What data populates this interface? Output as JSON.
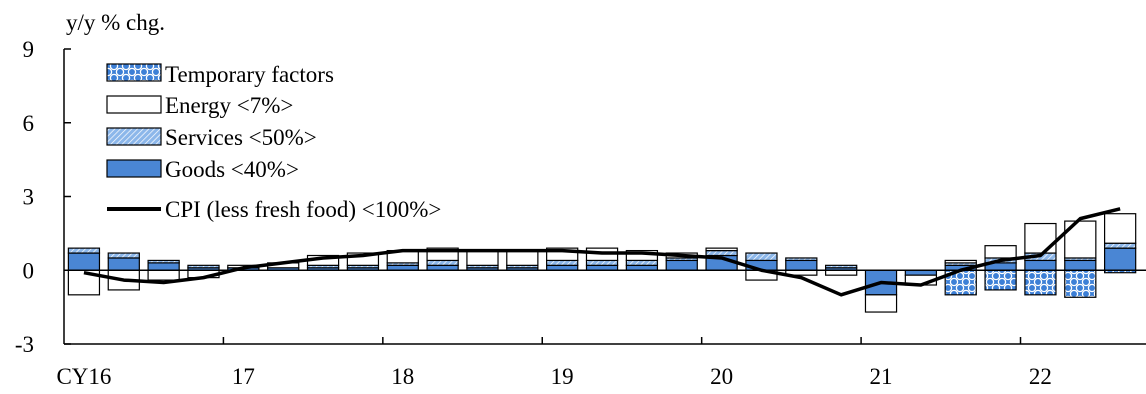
{
  "chart_data": {
    "type": "bar",
    "ylabel": "y/y % chg.",
    "ylim": [
      -3,
      9
    ],
    "yticks": [
      9,
      6,
      3,
      0,
      -3
    ],
    "ytick_labels": [
      "9",
      "6",
      "3",
      "0",
      "-3"
    ],
    "xtick_labels": [
      "CY16",
      "17",
      "18",
      "19",
      "20",
      "21",
      "22"
    ],
    "grid": false,
    "legend_position": "top-left",
    "colors": {
      "goods": "#4a86d4",
      "services": "#8cb7ea",
      "temporary": "#3c7fd6",
      "energy": "#ffffff",
      "line": "#000000"
    },
    "categories": [
      "16Q1",
      "16Q2",
      "16Q3",
      "16Q4",
      "17Q1",
      "17Q2",
      "17Q3",
      "17Q4",
      "18Q1",
      "18Q2",
      "18Q3",
      "18Q4",
      "19Q1",
      "19Q2",
      "19Q3",
      "19Q4",
      "20Q1",
      "20Q2",
      "20Q3",
      "20Q4",
      "21Q1",
      "21Q2",
      "21Q3",
      "21Q4",
      "22Q1",
      "22Q2",
      "22Q3"
    ],
    "series": [
      {
        "name": "Temporary factors",
        "kind": "bar",
        "values": [
          0,
          0,
          0,
          0,
          0,
          0,
          0,
          0,
          0,
          0,
          0,
          0,
          0,
          0,
          0,
          0,
          0,
          0,
          0,
          0,
          0,
          0,
          -1.0,
          -0.8,
          -1.0,
          -1.1,
          -0.1
        ]
      },
      {
        "name": "Energy <7%>",
        "kind": "bar",
        "values": [
          -1.0,
          -0.8,
          -0.4,
          -0.3,
          0.1,
          0.2,
          0.4,
          0.5,
          0.5,
          0.5,
          0.6,
          0.6,
          0.5,
          0.5,
          0.4,
          0.2,
          0.1,
          -0.4,
          -0.2,
          -0.2,
          -0.7,
          -0.4,
          0.1,
          0.5,
          1.2,
          1.5,
          1.2
        ]
      },
      {
        "name": "Services <50%>",
        "kind": "bar",
        "values": [
          0.2,
          0.2,
          0.1,
          0.1,
          0.0,
          0.0,
          0.1,
          0.1,
          0.1,
          0.2,
          0.1,
          0.1,
          0.2,
          0.2,
          0.2,
          0.1,
          0.2,
          0.3,
          0.1,
          0.1,
          0.0,
          0.0,
          0.1,
          0.2,
          0.3,
          0.1,
          0.2
        ]
      },
      {
        "name": "Goods <40%>",
        "kind": "bar",
        "values": [
          0.7,
          0.5,
          0.3,
          0.1,
          0.1,
          0.1,
          0.1,
          0.1,
          0.2,
          0.2,
          0.1,
          0.1,
          0.2,
          0.2,
          0.2,
          0.4,
          0.6,
          0.4,
          0.4,
          0.1,
          -1.0,
          -0.2,
          0.2,
          0.3,
          0.4,
          0.4,
          0.9
        ]
      },
      {
        "name": "CPI (less fresh food) <100%>",
        "kind": "line",
        "values": [
          -0.1,
          -0.4,
          -0.5,
          -0.3,
          0.1,
          0.3,
          0.5,
          0.6,
          0.8,
          0.8,
          0.8,
          0.8,
          0.8,
          0.7,
          0.7,
          0.6,
          0.5,
          0.0,
          -0.3,
          -1.0,
          -0.5,
          -0.6,
          0.0,
          0.4,
          0.6,
          2.1,
          2.5
        ]
      }
    ]
  }
}
